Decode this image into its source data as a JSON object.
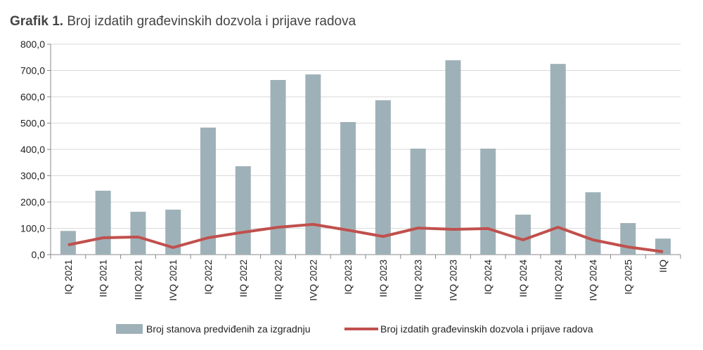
{
  "chart_data": {
    "type": "bar",
    "title_prefix": "Grafik 1.",
    "title": "Broj izdatih građevinskih dozvola i prijave radova",
    "categories": [
      "IQ 2021",
      "IIQ 2021",
      "IIIQ 2021",
      "IVQ 2021",
      "IQ 2022",
      "IIQ 2022",
      "IIIQ 2022",
      "IVQ 2022",
      "IQ 2023",
      "IIQ 2023",
      "IIIQ 2023",
      "IVQ 2023",
      "IQ 2024",
      "IIQ 2024",
      "IIIQ 2024",
      "IVQ 2024",
      "IQ 2025",
      "IIQ"
    ],
    "ylim": [
      0,
      800
    ],
    "yticks": [
      "0,0",
      "100,0",
      "200,0",
      "300,0",
      "400,0",
      "500,0",
      "600,0",
      "700,0",
      "800,0"
    ],
    "grid": true,
    "legend_position": "bottom",
    "series": [
      {
        "name": "Broj stanova predviđenih za izgradnju",
        "type": "bar",
        "color": "#9fb1b8",
        "values": [
          90,
          243,
          163,
          171,
          483,
          336,
          664,
          685,
          504,
          587,
          403,
          739,
          403,
          152,
          725,
          237,
          120,
          61
        ]
      },
      {
        "name": "Broj izdatih građevinskih dozvola i prijave radova",
        "type": "line",
        "color": "#c0504d",
        "values": [
          37,
          64,
          67,
          27,
          64,
          85,
          104,
          115,
          93,
          69,
          101,
          96,
          99,
          56,
          104,
          56,
          29,
          11
        ]
      }
    ]
  }
}
